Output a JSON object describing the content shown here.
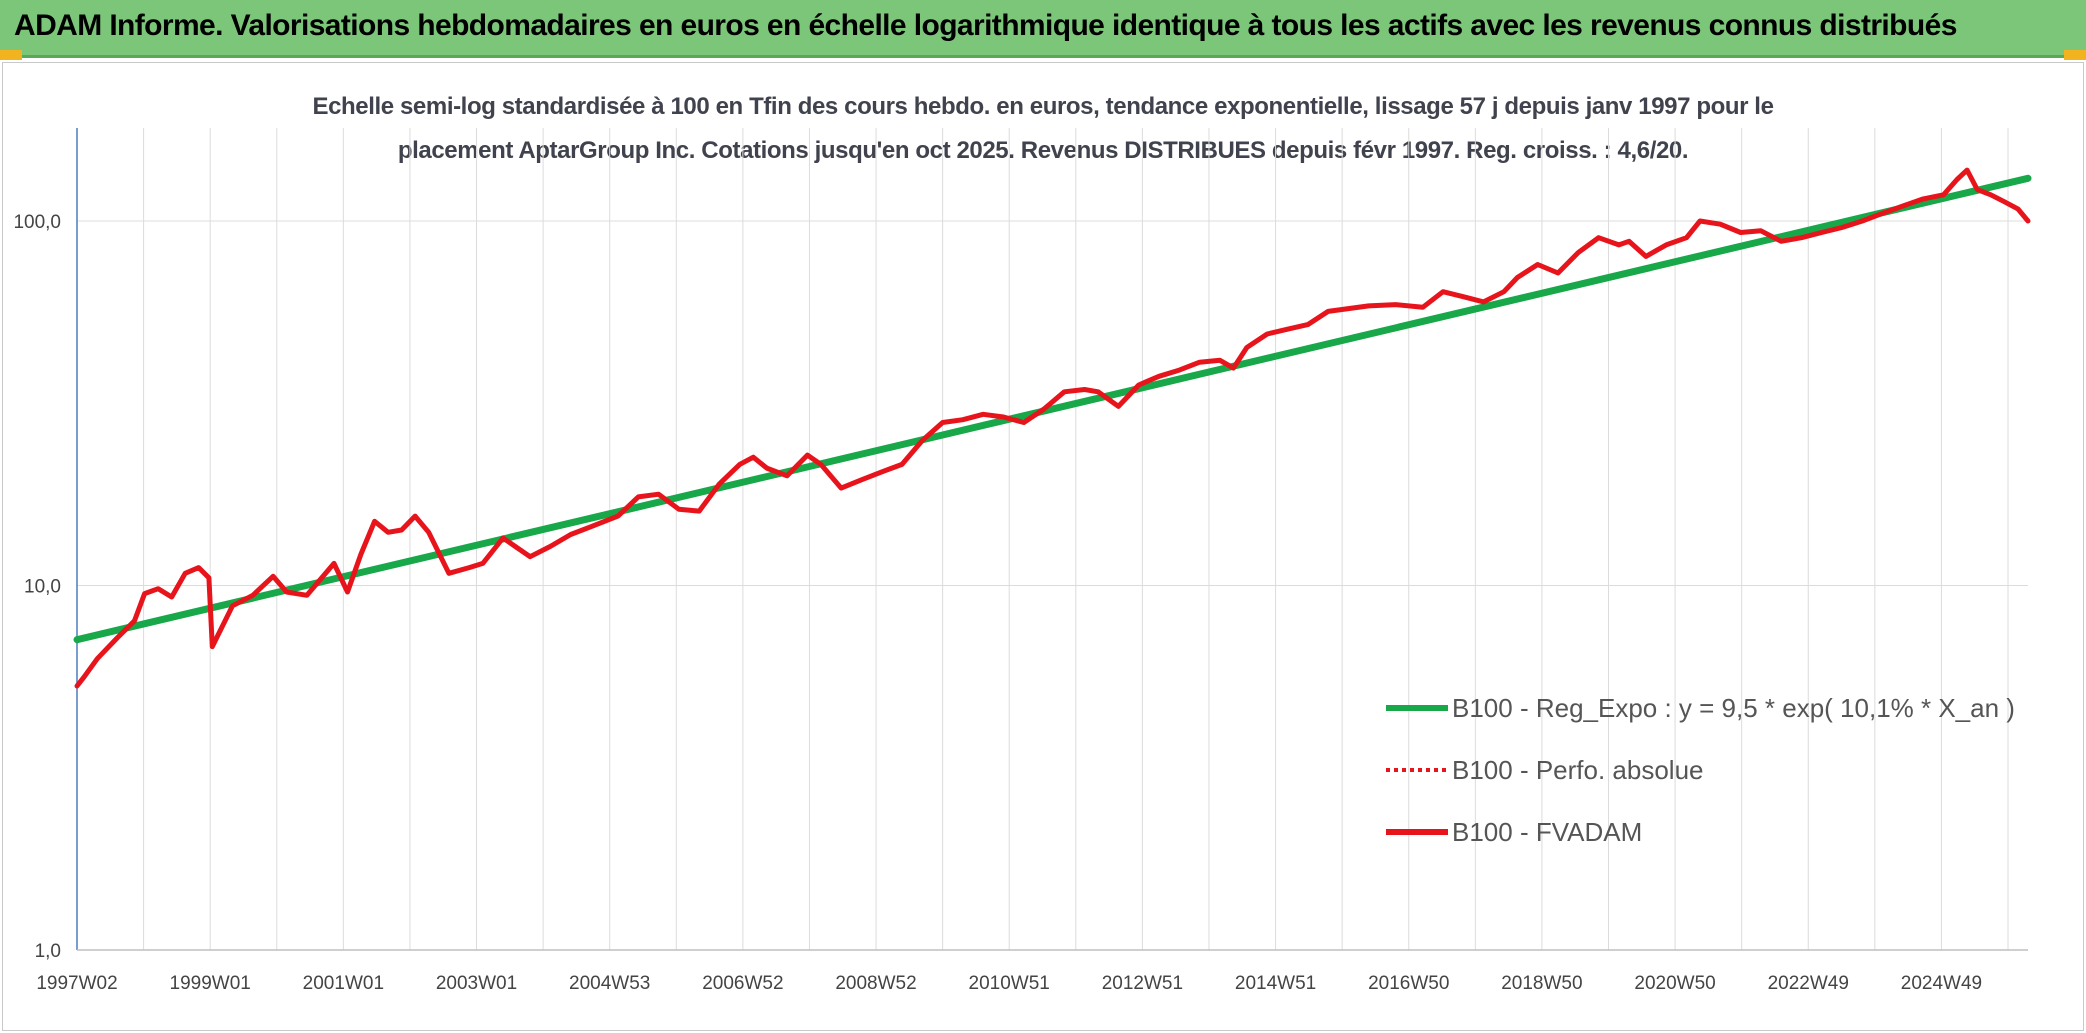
{
  "header": {
    "title": "ADAM Informe. Valorisations hebdomadaires en euros en échelle logarithmique identique à tous les actifs avec les revenus connus distribués",
    "background": "#7cc67a"
  },
  "chart_data": {
    "type": "line",
    "title_line1": "Echelle semi-log standardisée à 100 en Tfin des cours hebdo. en euros, tendance exponentielle, lissage 57 j depuis janv 1997 pour le",
    "title_line2": "placement AptarGroup Inc. Cotations jusqu'en oct 2025. Revenus DISTRIBUES depuis févr 1997. Reg. croiss. : 4,6/20.",
    "y_scale": "log",
    "ylim": [
      1,
      180
    ],
    "xlim": [
      1997.0,
      2025.85
    ],
    "y_ticks": [
      {
        "value": 1,
        "label": "1,0"
      },
      {
        "value": 10,
        "label": "10,0"
      },
      {
        "value": 100,
        "label": "100,0"
      }
    ],
    "x_tick_labels": [
      "1997W02",
      "1999W01",
      "2001W01",
      "2003W01",
      "2004W53",
      "2006W52",
      "2008W52",
      "2010W51",
      "2012W51",
      "2014W51",
      "2016W50",
      "2018W50",
      "2020W50",
      "2022W49",
      "2024W49"
    ],
    "grid": "vertical and horizontal",
    "legend_position": "bottom-right",
    "series": [
      {
        "name": "B100 - Reg_Expo : y = 9,5 * exp( 10,1% *  X_an )",
        "color": "#18a84a",
        "style": "solid",
        "x": [
          1997.0,
          2025.85
        ],
        "y": [
          7.1,
          131
        ]
      },
      {
        "name": "B100 - Perfo. absolue",
        "color": "#e8141c",
        "style": "dotted",
        "x": [],
        "y": []
      },
      {
        "name": "B100 - FVADAM",
        "color": "#e8141c",
        "style": "solid",
        "x": [
          1997.0,
          1997.1,
          1997.3,
          1997.6,
          1997.85,
          1998.0,
          1998.2,
          1998.4,
          1998.6,
          1998.8,
          1998.95,
          1999.0,
          1999.3,
          1999.6,
          1999.9,
          2000.1,
          2000.4,
          2000.6,
          2000.8,
          2001.0,
          2001.2,
          2001.4,
          2001.6,
          2001.8,
          2002.0,
          2002.2,
          2002.5,
          2002.8,
          2003.0,
          2003.3,
          2003.7,
          2004.0,
          2004.3,
          2004.6,
          2005.0,
          2005.3,
          2005.6,
          2005.9,
          2006.2,
          2006.5,
          2006.8,
          2007.0,
          2007.2,
          2007.5,
          2007.8,
          2008.0,
          2008.3,
          2008.6,
          2008.9,
          2009.2,
          2009.5,
          2009.8,
          2010.1,
          2010.4,
          2010.7,
          2011.0,
          2011.3,
          2011.6,
          2011.9,
          2012.1,
          2012.4,
          2012.7,
          2013.0,
          2013.3,
          2013.6,
          2013.9,
          2014.1,
          2014.3,
          2014.6,
          2014.9,
          2015.2,
          2015.5,
          2015.8,
          2016.1,
          2016.5,
          2016.9,
          2017.2,
          2017.5,
          2017.8,
          2018.1,
          2018.3,
          2018.6,
          2018.9,
          2019.2,
          2019.5,
          2019.8,
          2019.95,
          2020.2,
          2020.5,
          2020.8,
          2021.0,
          2021.3,
          2021.6,
          2021.9,
          2022.2,
          2022.5,
          2022.8,
          2023.1,
          2023.4,
          2023.7,
          2024.0,
          2024.3,
          2024.6,
          2024.8,
          2024.95,
          2025.1,
          2025.3,
          2025.5,
          2025.7,
          2025.85
        ],
        "y": [
          5.3,
          5.6,
          6.3,
          7.2,
          8.0,
          9.5,
          9.8,
          9.3,
          10.8,
          11.2,
          10.5,
          6.8,
          8.8,
          9.4,
          10.6,
          9.6,
          9.4,
          10.4,
          11.5,
          9.6,
          12.2,
          15.0,
          14.0,
          14.2,
          15.5,
          14.0,
          10.8,
          11.2,
          11.5,
          13.5,
          12.0,
          12.8,
          13.8,
          14.5,
          15.5,
          17.5,
          17.8,
          16.2,
          16.0,
          19.0,
          21.5,
          22.5,
          21.0,
          20.0,
          22.8,
          21.5,
          18.5,
          19.5,
          20.5,
          21.5,
          25.0,
          28.0,
          28.5,
          29.5,
          29.0,
          28.0,
          30.5,
          34.0,
          34.5,
          34.0,
          31.0,
          35.5,
          37.5,
          39.0,
          41.0,
          41.5,
          39.5,
          45.0,
          49.0,
          50.5,
          52.0,
          56.5,
          57.5,
          58.5,
          59.0,
          58.0,
          64.0,
          62.0,
          60.0,
          64.0,
          70.0,
          76.0,
          72.0,
          82.0,
          90.0,
          86.0,
          88.0,
          80.0,
          86.0,
          90.0,
          100.0,
          98.0,
          93.0,
          94.0,
          88.0,
          90.0,
          93.0,
          96.0,
          100.0,
          105.0,
          110.0,
          115.0,
          118.0,
          130.0,
          138.0,
          122.0,
          118.0,
          113.0,
          108.0,
          100.0
        ]
      }
    ]
  }
}
